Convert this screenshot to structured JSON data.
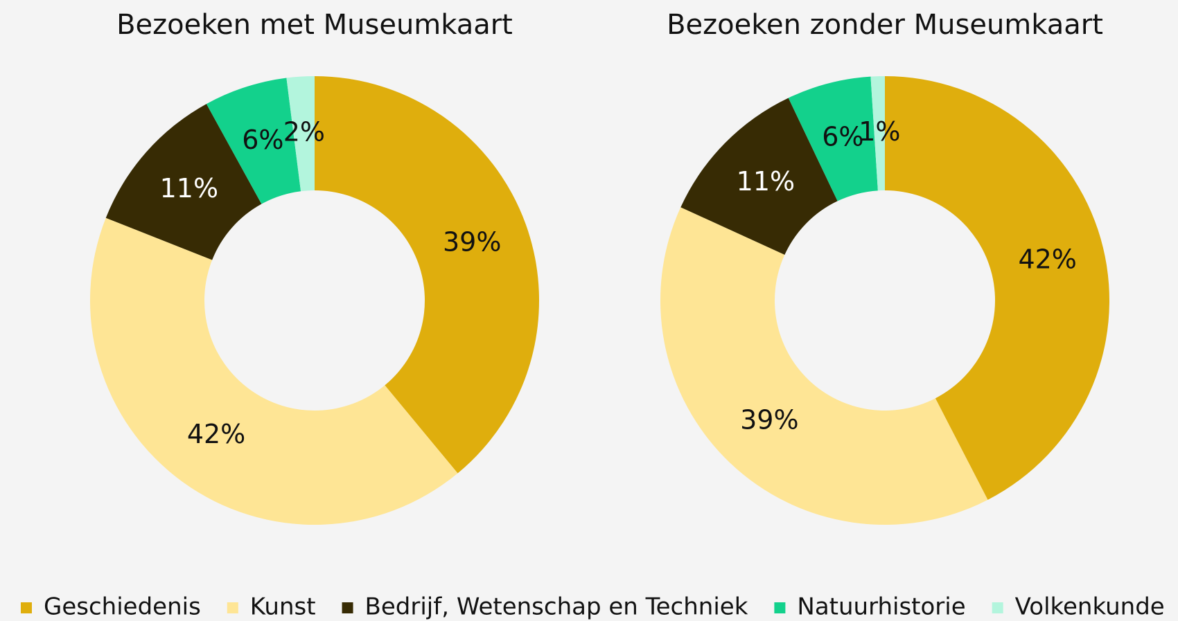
{
  "chart_data": [
    {
      "type": "pie",
      "title": "Bezoeken met Museumkaart",
      "categories": [
        "Geschiedenis",
        "Kunst",
        "Bedrijf, Wetenschap en Techniek",
        "Natuurhistorie",
        "Volkenkunde"
      ],
      "values": [
        39,
        42,
        11,
        6,
        2
      ],
      "value_labels": [
        "39%",
        "42%",
        "11%",
        "6%",
        "2%"
      ],
      "colors": [
        "#dfae0d",
        "#fee595",
        "#372b04",
        "#13d18c",
        "#b3f5dd"
      ],
      "donut": true
    },
    {
      "type": "pie",
      "title": "Bezoeken zonder Museumkaart",
      "categories": [
        "Geschiedenis",
        "Kunst",
        "Bedrijf, Wetenschap en Techniek",
        "Natuurhistorie",
        "Volkenkunde"
      ],
      "values": [
        42,
        39,
        11,
        6,
        1
      ],
      "value_labels": [
        "42%",
        "39%",
        "11%",
        "6%",
        "1%"
      ],
      "colors": [
        "#dfae0d",
        "#fee595",
        "#372b04",
        "#13d18c",
        "#b3f5dd"
      ],
      "donut": true
    }
  ]
}
